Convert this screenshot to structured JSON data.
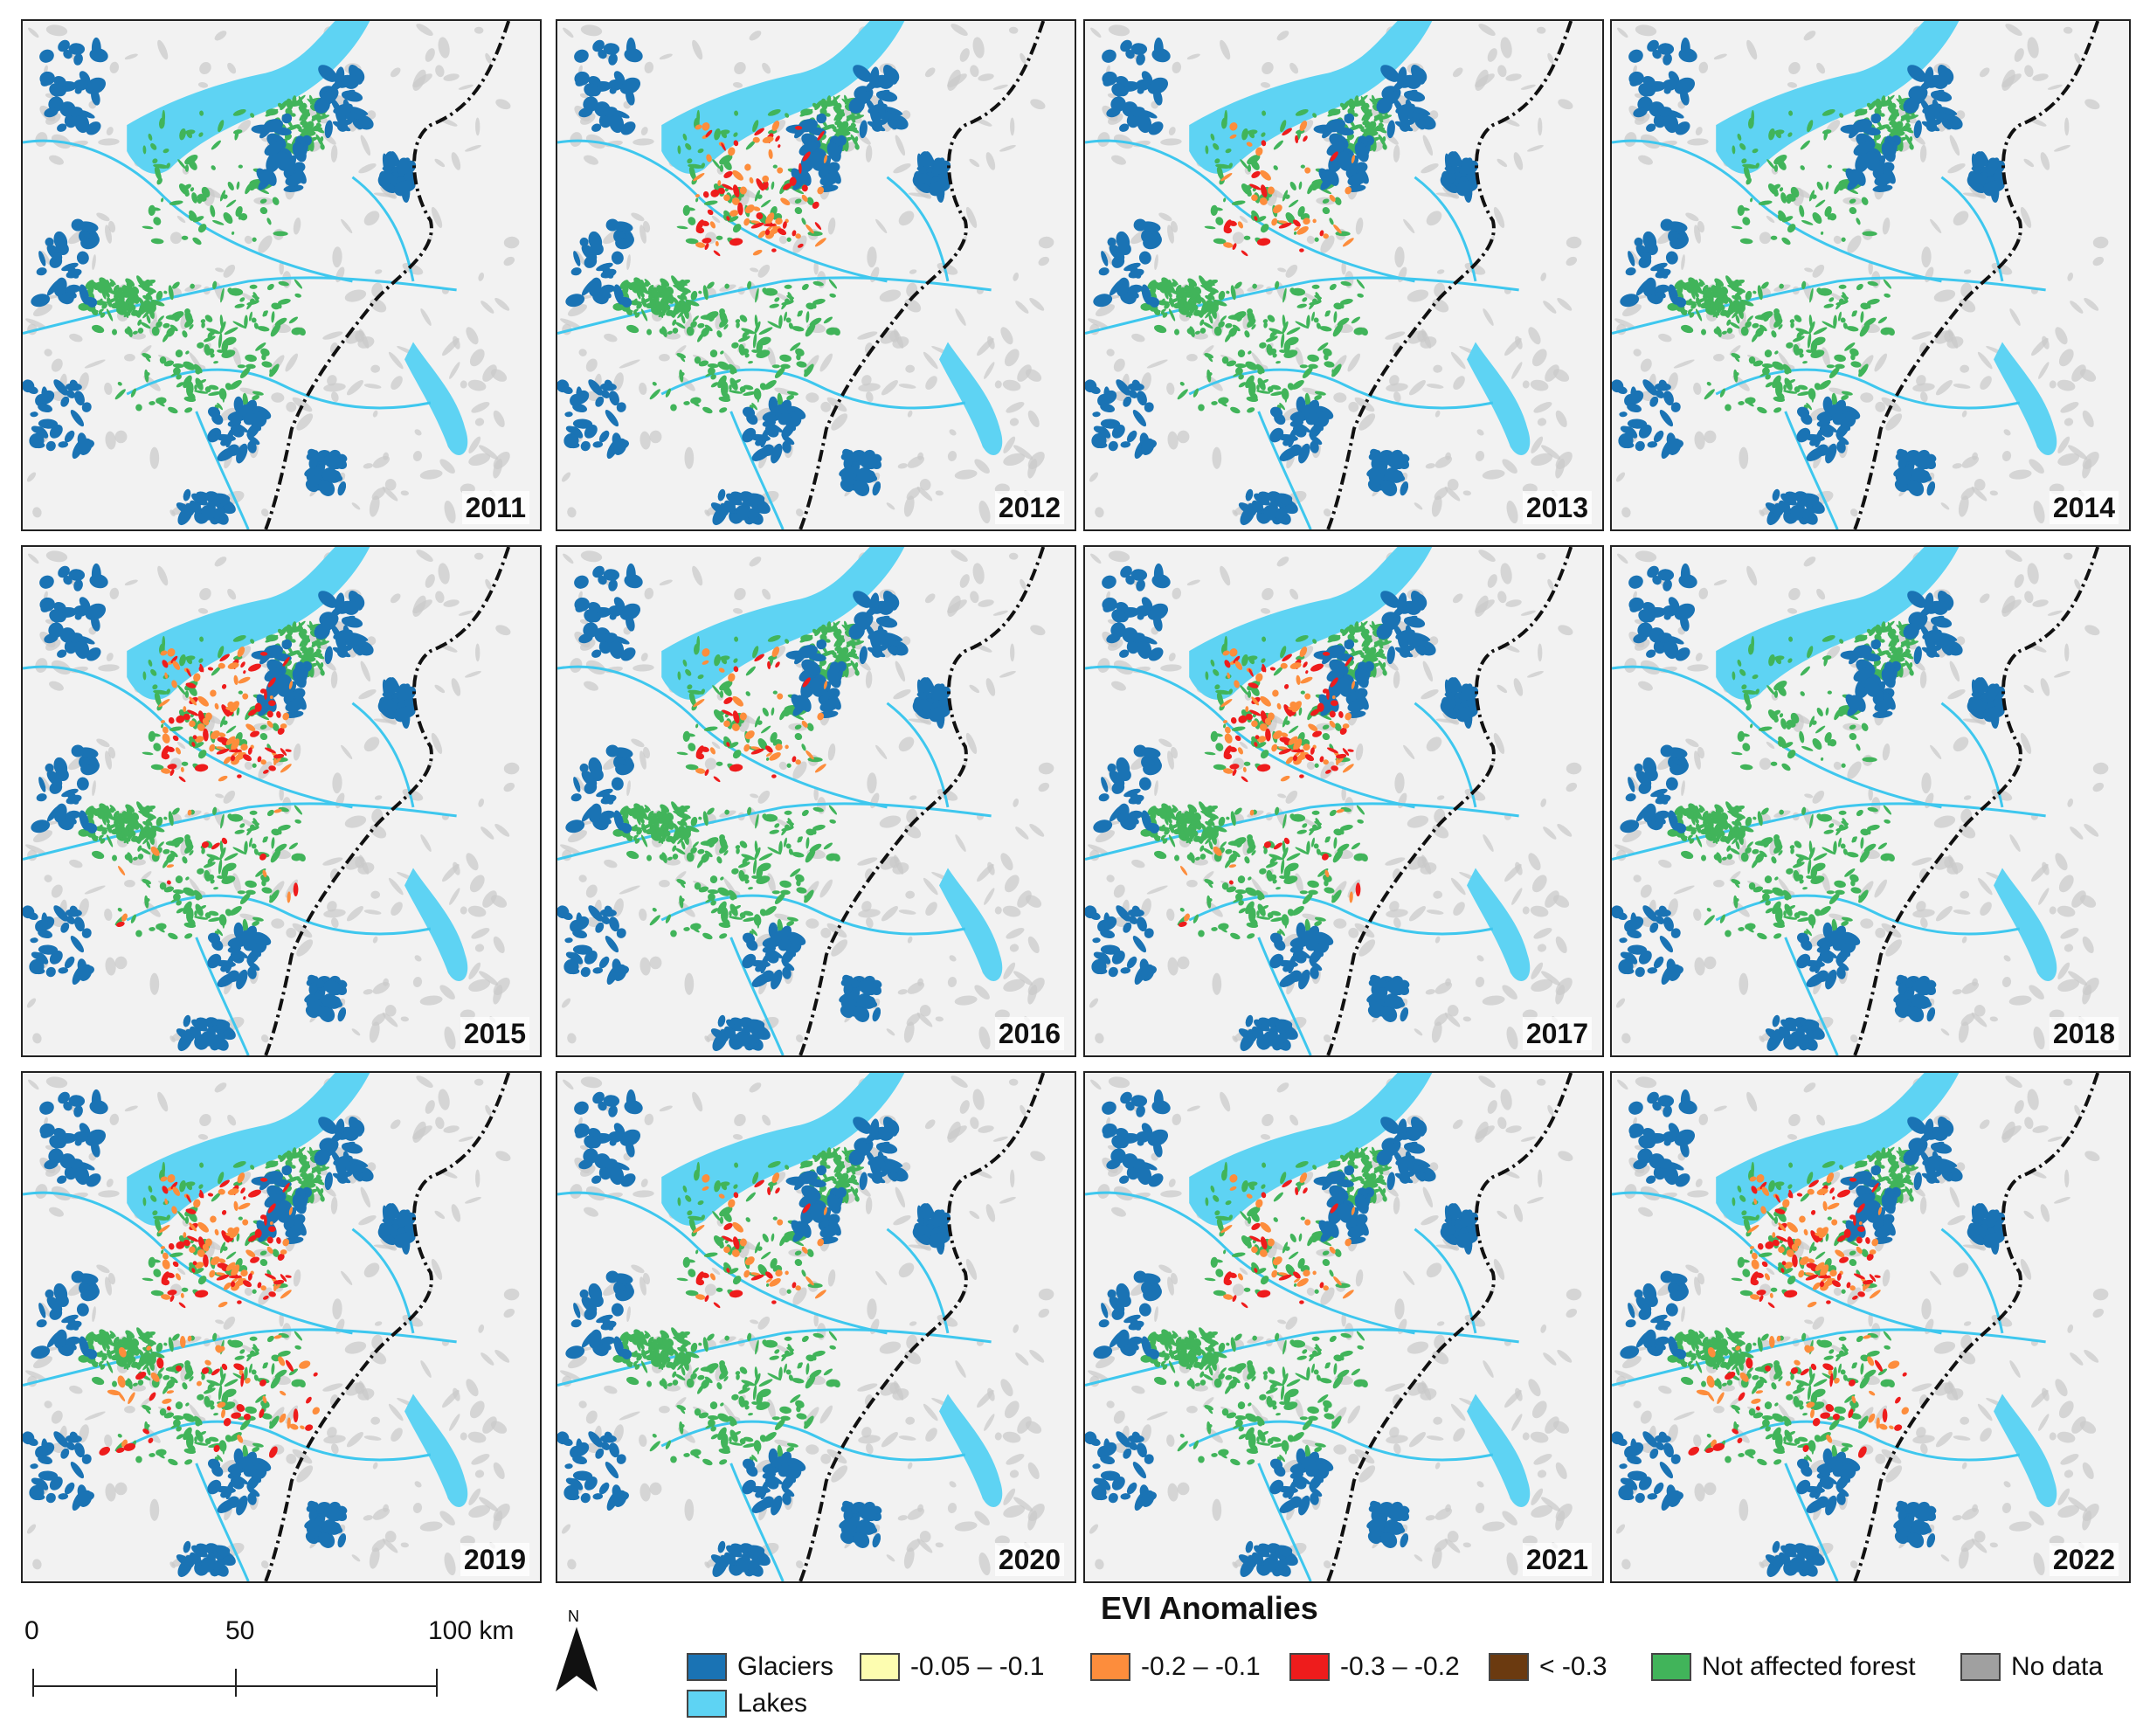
{
  "panels": [
    {
      "year": "2011",
      "severity": 0
    },
    {
      "year": "2012",
      "severity": 2
    },
    {
      "year": "2013",
      "severity": 1
    },
    {
      "year": "2014",
      "severity": 0
    },
    {
      "year": "2015",
      "severity": 3
    },
    {
      "year": "2016",
      "severity": 1
    },
    {
      "year": "2017",
      "severity": 3
    },
    {
      "year": "2018",
      "severity": 0
    },
    {
      "year": "2019",
      "severity": 4
    },
    {
      "year": "2020",
      "severity": 1
    },
    {
      "year": "2021",
      "severity": 1
    },
    {
      "year": "2022",
      "severity": 4
    }
  ],
  "scale": {
    "labels": [
      "0",
      "50",
      "100 km"
    ]
  },
  "north": {
    "label": "N"
  },
  "legend": {
    "title": "EVI Anomalies",
    "items": [
      {
        "label": "Glaciers",
        "color": "#1a73b4"
      },
      {
        "label": "-0.05 –  -0.1",
        "color": "#fdfdb0"
      },
      {
        "label": "-0.2 – -0.1",
        "color": "#fd8d3c"
      },
      {
        "label": "-0.3 – -0.2",
        "color": "#ee1c1c"
      },
      {
        "label": "< -0.3",
        "color": "#6b3a10"
      },
      {
        "label": "Not affected forest",
        "color": "#41b45a"
      },
      {
        "label": "No data",
        "color": "#a0a0a0"
      },
      {
        "label": "Lakes",
        "color": "#5ed3f3"
      }
    ]
  }
}
